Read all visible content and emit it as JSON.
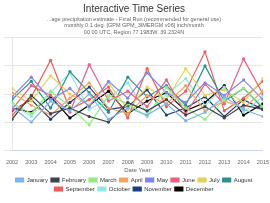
{
  "chart_data": {
    "type": "line",
    "title": "Interactive Time Series",
    "subtitle": [
      "...age precipitation estimate - Final Run (recommended for general use)",
      "monthly 0.1 deg. [GPM GPM_3IMERGM v06] inch/month",
      "00 00 UTC, Region 77.1983W, 39.2324N"
    ],
    "x_label": "Date Year",
    "categories": [
      "2002",
      "2003",
      "2004",
      "2005",
      "2006",
      "2007",
      "2008",
      "2009",
      "2010",
      "2011",
      "2012",
      "2013",
      "2014",
      "2015"
    ],
    "ylim": [
      0,
      8
    ],
    "yticks": [
      0,
      2,
      4,
      6,
      8
    ],
    "grid": true,
    "tick_labels": "x",
    "legend": "bottom",
    "marker": "circle",
    "series": [
      {
        "name": "January",
        "color": "#7cb5ec",
        "values": [
          3.1,
          2.0,
          3.5,
          2.8,
          4.0,
          2.2,
          3.0,
          2.5,
          3.3,
          2.1,
          2.7,
          3.8,
          2.9,
          2.4
        ]
      },
      {
        "name": "February",
        "color": "#434348",
        "values": [
          2.2,
          3.9,
          2.6,
          3.0,
          2.4,
          2.0,
          3.4,
          2.8,
          3.6,
          2.5,
          3.1,
          2.3,
          3.2,
          2.9
        ]
      },
      {
        "name": "March",
        "color": "#90ed7d",
        "values": [
          3.4,
          2.6,
          4.2,
          3.1,
          1.8,
          3.9,
          3.3,
          2.4,
          4.5,
          3.0,
          2.2,
          3.6,
          4.4,
          3.1
        ]
      },
      {
        "name": "April",
        "color": "#f7a35c",
        "values": [
          4.1,
          3.2,
          2.5,
          3.7,
          4.8,
          3.0,
          2.6,
          3.9,
          3.3,
          4.6,
          2.8,
          3.5,
          3.0,
          4.2
        ]
      },
      {
        "name": "May",
        "color": "#8085e9",
        "values": [
          3.8,
          5.2,
          3.6,
          4.4,
          3.1,
          4.9,
          3.7,
          5.5,
          4.1,
          3.4,
          4.8,
          3.9,
          5.0,
          3.6
        ]
      },
      {
        "name": "June",
        "color": "#f15c80",
        "values": [
          2.9,
          4.6,
          3.9,
          2.7,
          6.1,
          3.5,
          4.2,
          3.1,
          5.0,
          2.6,
          4.7,
          3.3,
          6.5,
          4.0
        ]
      },
      {
        "name": "July",
        "color": "#e4d354",
        "values": [
          4.4,
          3.5,
          5.3,
          4.0,
          3.2,
          4.8,
          2.9,
          4.5,
          3.6,
          5.8,
          3.9,
          4.3,
          3.4,
          5.1
        ]
      },
      {
        "name": "August",
        "color": "#2b908f",
        "values": [
          3.6,
          4.9,
          3.0,
          5.6,
          4.1,
          2.7,
          5.2,
          3.8,
          4.6,
          3.2,
          6.0,
          3.5,
          4.4,
          3.0
        ]
      },
      {
        "name": "September",
        "color": "#f45b5b",
        "values": [
          2.5,
          3.8,
          6.4,
          2.9,
          3.6,
          4.5,
          2.3,
          5.8,
          3.1,
          4.2,
          7.0,
          2.8,
          3.7,
          4.9
        ]
      },
      {
        "name": "October",
        "color": "#91e8e1",
        "values": [
          3.3,
          2.4,
          4.1,
          5.5,
          2.9,
          3.7,
          4.8,
          2.6,
          3.9,
          5.1,
          3.2,
          4.5,
          2.7,
          3.8
        ]
      },
      {
        "name": "November",
        "color": "#1a3e7a",
        "values": [
          2.8,
          3.6,
          2.2,
          3.4,
          4.5,
          2.9,
          3.1,
          4.3,
          2.5,
          3.0,
          3.8,
          2.4,
          3.6,
          2.9
        ]
      },
      {
        "name": "December",
        "color": "#000000",
        "values": [
          3.0,
          2.7,
          3.8,
          2.3,
          3.2,
          4.2,
          2.6,
          3.5,
          4.1,
          2.8,
          3.4,
          4.6,
          2.5,
          3.3
        ]
      }
    ]
  }
}
